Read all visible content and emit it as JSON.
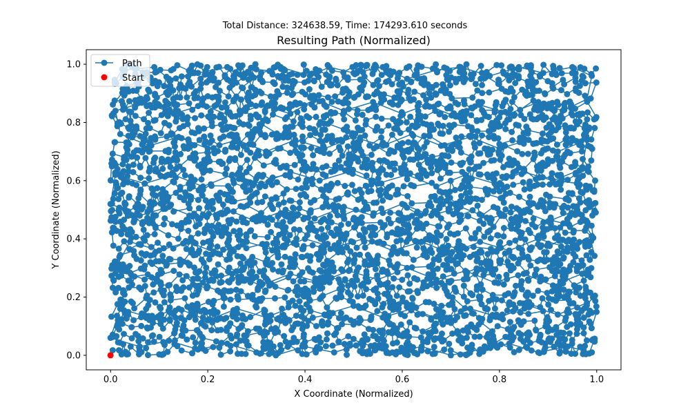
{
  "chart_data": {
    "type": "scatter",
    "suptitle": "Total Distance: 324638.59, Time: 174293.610 seconds",
    "title": "Resulting Path (Normalized)",
    "xlabel": "X Coordinate (Normalized)",
    "ylabel": "Y Coordinate (Normalized)",
    "xlim": [
      -0.05,
      1.05
    ],
    "ylim": [
      -0.05,
      1.05
    ],
    "xticks": [
      0.0,
      0.2,
      0.4,
      0.6,
      0.8,
      1.0
    ],
    "xtick_labels": [
      "0.0",
      "0.2",
      "0.4",
      "0.6",
      "0.8",
      "1.0"
    ],
    "yticks": [
      0.0,
      0.2,
      0.4,
      0.6,
      0.8,
      1.0
    ],
    "ytick_labels": [
      "0.0",
      "0.2",
      "0.4",
      "0.6",
      "0.8",
      "1.0"
    ],
    "grid": false,
    "legend": {
      "position": "top-left",
      "entries": [
        {
          "label": "Path",
          "color": "#1f77b4",
          "marker": "line-with-circle"
        },
        {
          "label": "Start",
          "color": "#ff0000",
          "marker": "circle"
        }
      ]
    },
    "series": [
      {
        "name": "Path",
        "color": "#1f77b4",
        "points": [
          [
            0.03,
            0.98
          ],
          [
            0.09,
            0.99
          ],
          [
            0.12,
            0.95
          ],
          [
            0.18,
            0.97
          ],
          [
            0.24,
            0.99
          ],
          [
            0.27,
            0.92
          ],
          [
            0.31,
            0.97
          ],
          [
            0.35,
            0.99
          ],
          [
            0.41,
            0.96
          ],
          [
            0.45,
            0.99
          ],
          [
            0.5,
            0.97
          ],
          [
            0.56,
            0.99
          ],
          [
            0.61,
            0.95
          ],
          [
            0.67,
            0.98
          ],
          [
            0.72,
            0.99
          ],
          [
            0.78,
            0.96
          ],
          [
            0.84,
            0.99
          ],
          [
            0.89,
            0.97
          ],
          [
            0.95,
            0.99
          ],
          [
            0.99,
            0.96
          ],
          [
            0.98,
            0.88
          ],
          [
            0.93,
            0.84
          ],
          [
            0.88,
            0.87
          ],
          [
            0.82,
            0.83
          ],
          [
            0.76,
            0.86
          ],
          [
            0.71,
            0.82
          ],
          [
            0.65,
            0.86
          ],
          [
            0.6,
            0.83
          ],
          [
            0.54,
            0.87
          ],
          [
            0.48,
            0.84
          ],
          [
            0.42,
            0.88
          ],
          [
            0.37,
            0.83
          ],
          [
            0.31,
            0.86
          ],
          [
            0.25,
            0.82
          ],
          [
            0.19,
            0.86
          ],
          [
            0.13,
            0.83
          ],
          [
            0.07,
            0.87
          ],
          [
            0.01,
            0.84
          ],
          [
            0.02,
            0.76
          ],
          [
            0.08,
            0.72
          ],
          [
            0.14,
            0.75
          ],
          [
            0.2,
            0.71
          ],
          [
            0.26,
            0.74
          ],
          [
            0.32,
            0.7
          ],
          [
            0.38,
            0.74
          ],
          [
            0.44,
            0.71
          ],
          [
            0.5,
            0.75
          ],
          [
            0.56,
            0.72
          ],
          [
            0.62,
            0.76
          ],
          [
            0.68,
            0.72
          ],
          [
            0.74,
            0.75
          ],
          [
            0.8,
            0.71
          ],
          [
            0.86,
            0.74
          ],
          [
            0.92,
            0.7
          ],
          [
            0.98,
            0.74
          ],
          [
            0.97,
            0.64
          ],
          [
            0.91,
            0.6
          ],
          [
            0.85,
            0.63
          ],
          [
            0.79,
            0.59
          ],
          [
            0.73,
            0.62
          ],
          [
            0.67,
            0.58
          ],
          [
            0.61,
            0.62
          ],
          [
            0.55,
            0.59
          ],
          [
            0.49,
            0.63
          ],
          [
            0.43,
            0.6
          ],
          [
            0.37,
            0.63
          ],
          [
            0.31,
            0.59
          ],
          [
            0.25,
            0.62
          ],
          [
            0.19,
            0.58
          ],
          [
            0.13,
            0.62
          ],
          [
            0.07,
            0.59
          ],
          [
            0.01,
            0.62
          ],
          [
            0.0,
            0.52
          ],
          [
            0.06,
            0.48
          ],
          [
            0.12,
            0.51
          ],
          [
            0.18,
            0.47
          ],
          [
            0.24,
            0.5
          ],
          [
            0.3,
            0.46
          ],
          [
            0.36,
            0.5
          ],
          [
            0.42,
            0.47
          ],
          [
            0.48,
            0.51
          ],
          [
            0.54,
            0.48
          ],
          [
            0.6,
            0.52
          ],
          [
            0.66,
            0.48
          ],
          [
            0.72,
            0.51
          ],
          [
            0.78,
            0.47
          ],
          [
            0.84,
            0.5
          ],
          [
            0.9,
            0.46
          ],
          [
            0.96,
            0.5
          ],
          [
            0.99,
            0.41
          ],
          [
            0.94,
            0.37
          ],
          [
            0.88,
            0.4
          ],
          [
            0.82,
            0.36
          ],
          [
            0.76,
            0.39
          ],
          [
            0.7,
            0.35
          ],
          [
            0.64,
            0.39
          ],
          [
            0.58,
            0.36
          ],
          [
            0.52,
            0.4
          ],
          [
            0.46,
            0.37
          ],
          [
            0.4,
            0.4
          ],
          [
            0.34,
            0.36
          ],
          [
            0.28,
            0.39
          ],
          [
            0.22,
            0.35
          ],
          [
            0.16,
            0.39
          ],
          [
            0.1,
            0.36
          ],
          [
            0.04,
            0.39
          ],
          [
            0.01,
            0.3
          ],
          [
            0.07,
            0.26
          ],
          [
            0.13,
            0.29
          ],
          [
            0.19,
            0.25
          ],
          [
            0.25,
            0.28
          ],
          [
            0.31,
            0.24
          ],
          [
            0.37,
            0.28
          ],
          [
            0.43,
            0.25
          ],
          [
            0.49,
            0.29
          ],
          [
            0.55,
            0.26
          ],
          [
            0.61,
            0.3
          ],
          [
            0.67,
            0.26
          ],
          [
            0.73,
            0.29
          ],
          [
            0.79,
            0.25
          ],
          [
            0.85,
            0.28
          ],
          [
            0.91,
            0.24
          ],
          [
            0.97,
            0.28
          ],
          [
            0.98,
            0.18
          ],
          [
            0.92,
            0.14
          ],
          [
            0.86,
            0.17
          ],
          [
            0.8,
            0.13
          ],
          [
            0.74,
            0.16
          ],
          [
            0.68,
            0.12
          ],
          [
            0.62,
            0.16
          ],
          [
            0.56,
            0.13
          ],
          [
            0.5,
            0.17
          ],
          [
            0.44,
            0.14
          ],
          [
            0.38,
            0.17
          ],
          [
            0.32,
            0.13
          ],
          [
            0.26,
            0.16
          ],
          [
            0.2,
            0.12
          ],
          [
            0.14,
            0.16
          ],
          [
            0.08,
            0.13
          ],
          [
            0.02,
            0.16
          ],
          [
            0.0,
            0.06
          ],
          [
            0.06,
            0.03
          ],
          [
            0.12,
            0.05
          ],
          [
            0.18,
            0.02
          ],
          [
            0.24,
            0.04
          ],
          [
            0.3,
            0.01
          ],
          [
            0.34,
            0.0
          ],
          [
            0.4,
            0.03
          ],
          [
            0.46,
            0.01
          ],
          [
            0.52,
            0.04
          ],
          [
            0.58,
            0.01
          ],
          [
            0.64,
            0.03
          ],
          [
            0.7,
            0.0
          ],
          [
            0.76,
            0.02
          ],
          [
            0.82,
            0.04
          ],
          [
            0.88,
            0.01
          ],
          [
            0.94,
            0.03
          ],
          [
            0.99,
            0.01
          ]
        ]
      },
      {
        "name": "Start",
        "color": "#ff0000",
        "points": [
          [
            0.0,
            0.0
          ]
        ]
      }
    ],
    "fill_cloud": {
      "count": 4000,
      "x_range": [
        0.0,
        1.0
      ],
      "y_range": [
        0.0,
        1.0
      ]
    }
  }
}
